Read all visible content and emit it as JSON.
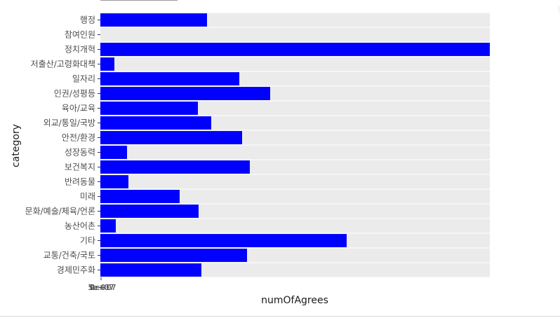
{
  "chart_data": {
    "type": "bar",
    "orientation": "horizontal",
    "categories": [
      "행정",
      "참여인원",
      "정치개혁",
      "저출산/고령화대책",
      "일자리",
      "인권/성평등",
      "육아/교육",
      "외교/통일/국방",
      "안전/환경",
      "성장동력",
      "보건복지",
      "반려동물",
      "미래",
      "문화/예술/체육/언론",
      "농산어촌",
      "기타",
      "교통/건축/국토",
      "경제민주화"
    ],
    "values": [
      152,
      0,
      555,
      20,
      198,
      242,
      139,
      158,
      202,
      38,
      213,
      40,
      113,
      140,
      22,
      351,
      209,
      144
    ],
    "xlim": [
      0,
      555
    ],
    "xlabel": "numOfAgrees",
    "ylabel": "category",
    "x_tick_labels_overlapping": [
      "1e+07",
      "2e+07",
      "3e+07",
      "4e+07",
      "5e+07",
      "0"
    ],
    "bar_color": "#0000ff",
    "panel_color": "#ebebeb",
    "grid": true,
    "legend": "none"
  }
}
